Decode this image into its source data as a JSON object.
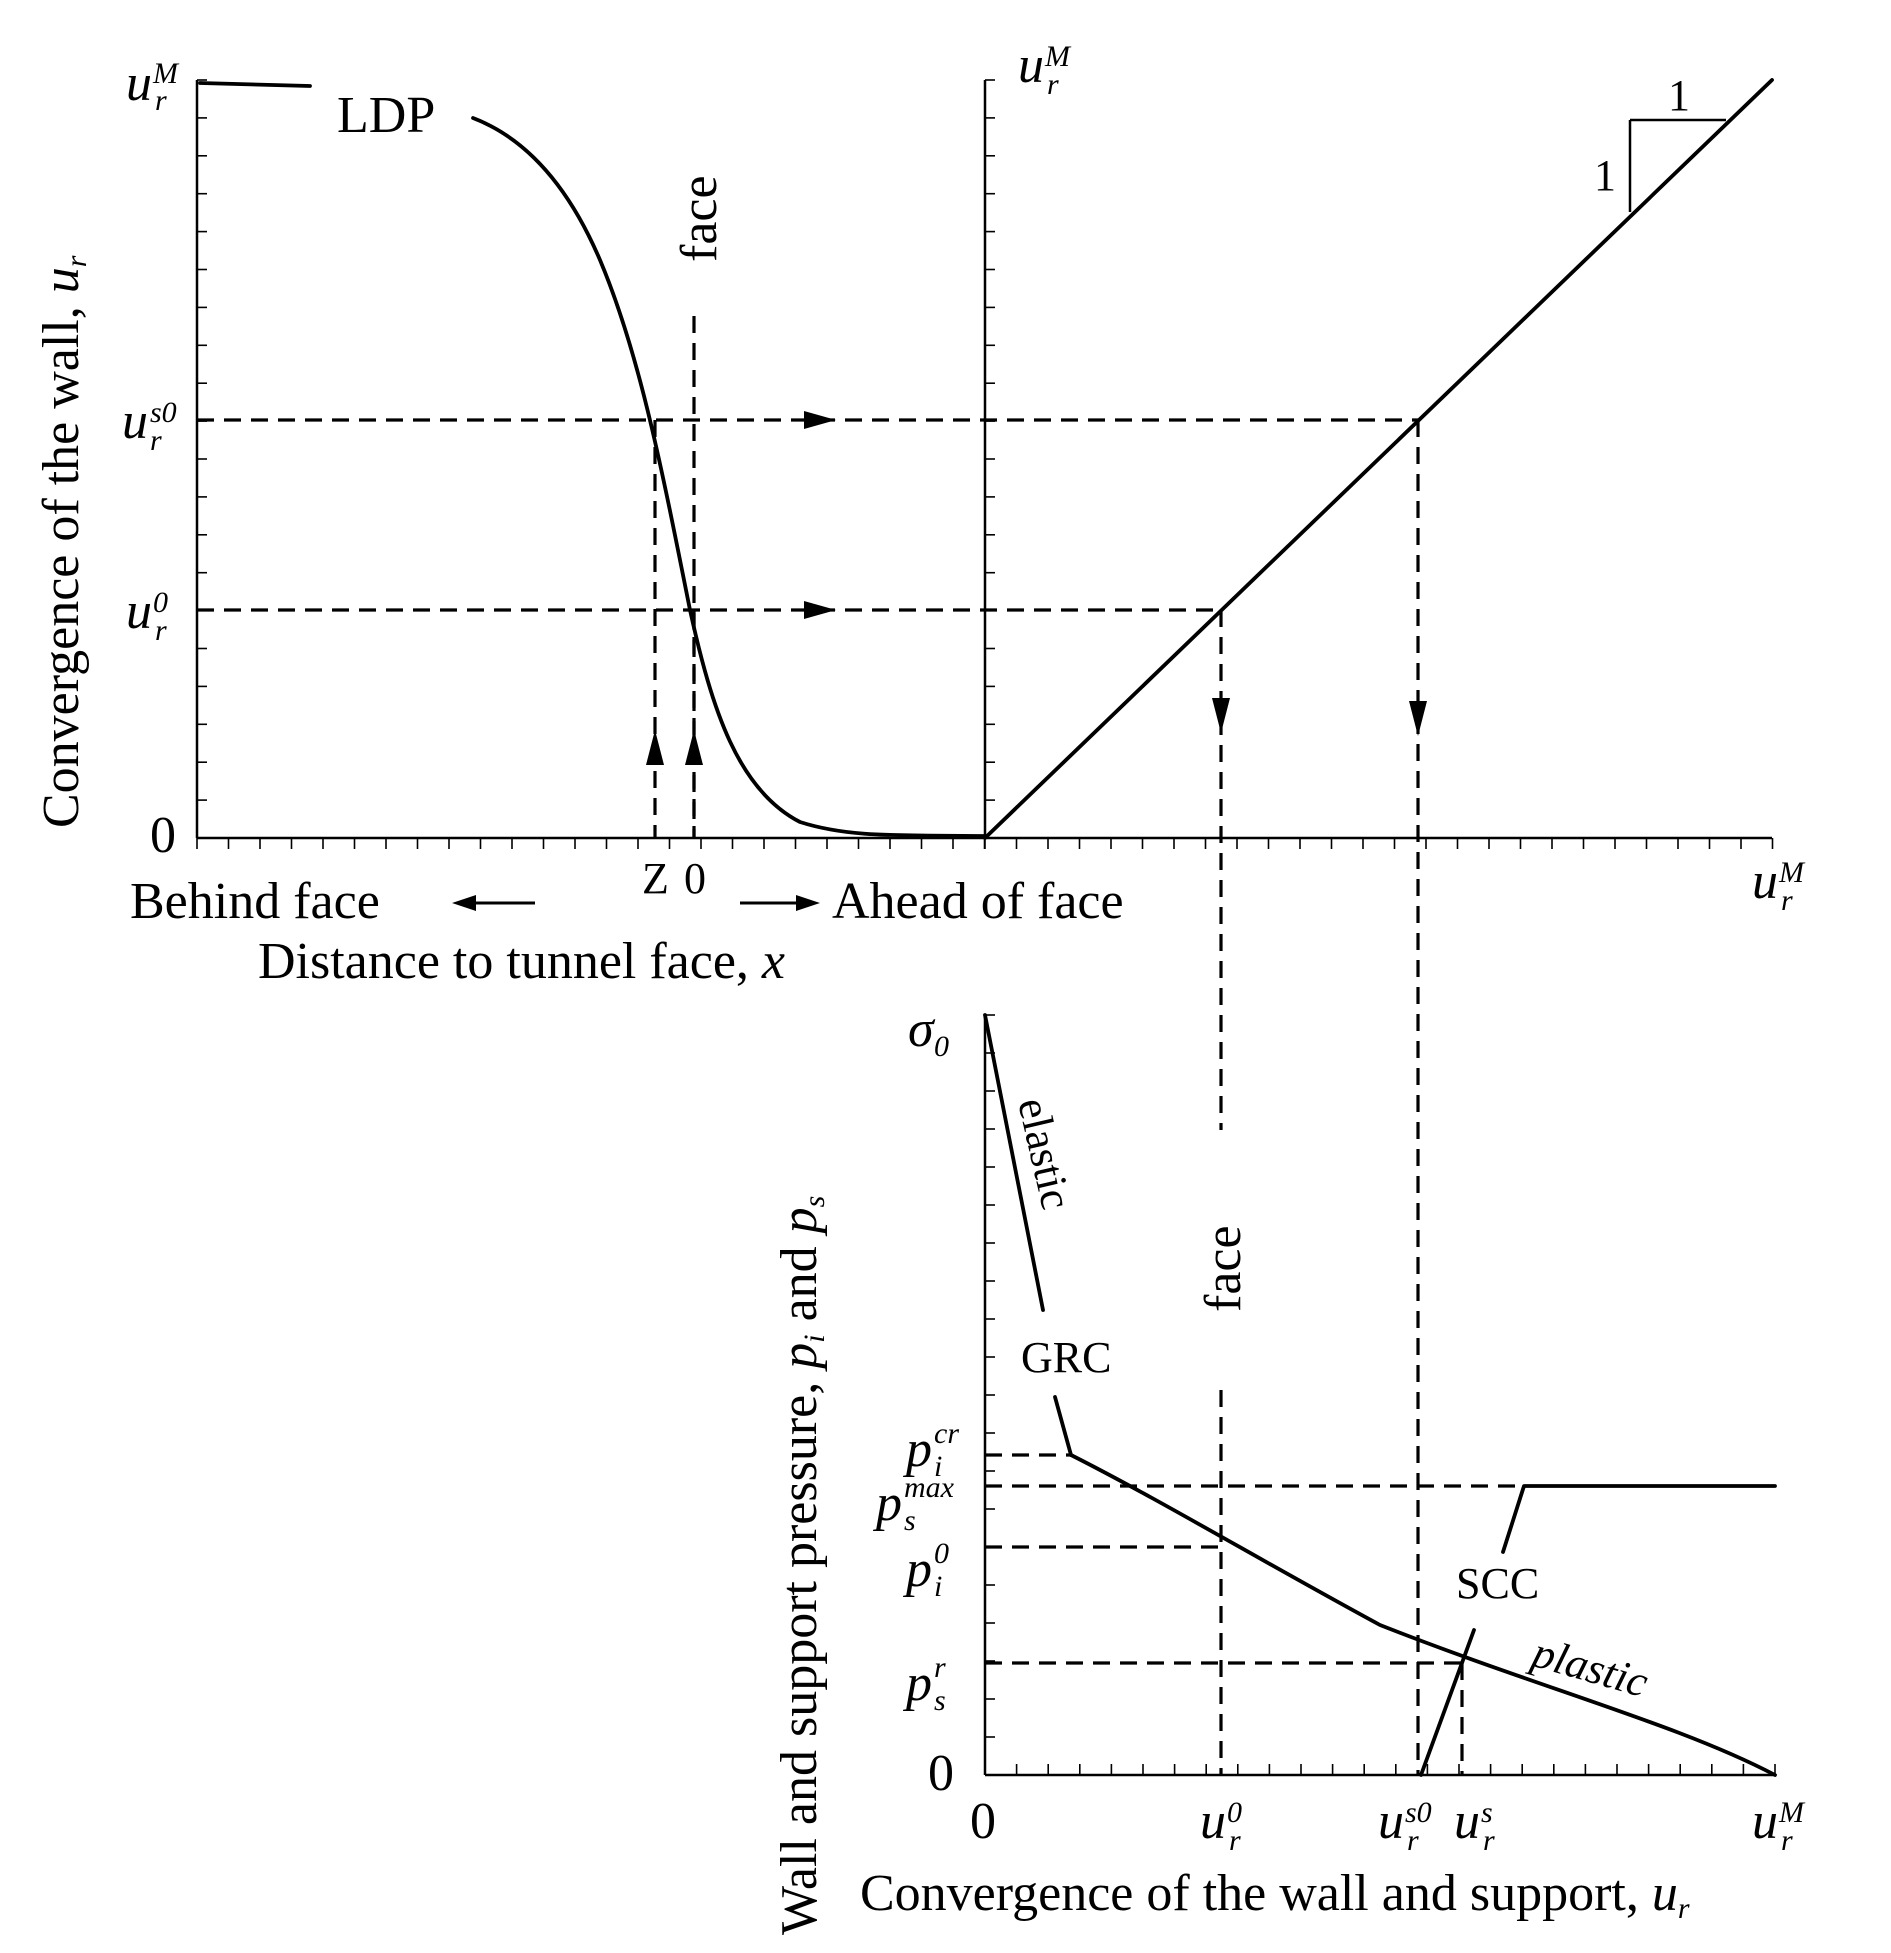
{
  "colors": {
    "ink": "#000000",
    "background": "#ffffff"
  },
  "top_chart": {
    "ylabel": "Convergence of the wall, ",
    "ylabel_var": "u",
    "ylabel_var_sub": "r",
    "curve_label": "LDP",
    "face_label": "face",
    "zero_label": "0",
    "x_ticks": {
      "z": "Z",
      "zero": "0"
    },
    "behind_label": "Behind face",
    "ahead_label": "Ahead of  face",
    "xlabel": "Distance to tunnel face, ",
    "xlabel_var": "x",
    "y_marks": {
      "u_max": {
        "base": "u",
        "sup": "M",
        "sub": "r"
      },
      "u_s0": {
        "base": "u",
        "sup": "s0",
        "sub": "r"
      },
      "u_0": {
        "base": "u",
        "sup": "0",
        "sub": "r"
      }
    }
  },
  "right_chart": {
    "y_top": {
      "base": "u",
      "sup": "M",
      "sub": "r"
    },
    "x_end": {
      "base": "u",
      "sup": "M",
      "sub": "r"
    },
    "slope_run": "1",
    "slope_rise": "1"
  },
  "bottom_chart": {
    "ylabel": "Wall and support pressure, ",
    "ylabel_p1": "p",
    "ylabel_p1_sub": "i",
    "ylabel_and": " and ",
    "ylabel_p2": "p",
    "ylabel_p2_sub": "s",
    "xlabel": "Convergence of the wall and support, ",
    "xlabel_var": "u",
    "xlabel_var_sub": "r",
    "sigma": {
      "base": "σ",
      "sub": "0"
    },
    "zero_y": "0",
    "zero_x": "0",
    "p_marks": {
      "pi_cr": {
        "base": "p",
        "sup": "cr",
        "sub": "i"
      },
      "ps_max": {
        "base": "p",
        "sup": "max",
        "sub": "s"
      },
      "pi_0": {
        "base": "p",
        "sup": "0",
        "sub": "i"
      },
      "ps_r": {
        "base": "p",
        "sup": "r",
        "sub": "s"
      }
    },
    "u_marks": {
      "u0": {
        "base": "u",
        "sup": "0",
        "sub": "r"
      },
      "us0": {
        "base": "u",
        "sup": "s0",
        "sub": "r"
      },
      "us": {
        "base": "u",
        "sup": "s",
        "sub": "r"
      },
      "uM": {
        "base": "u",
        "sup": "M",
        "sub": "r"
      }
    },
    "elastic_label": "elastic",
    "grc_label": "GRC",
    "face_label": "face",
    "scc_label": "SCC",
    "plastic_label": "plastic"
  }
}
